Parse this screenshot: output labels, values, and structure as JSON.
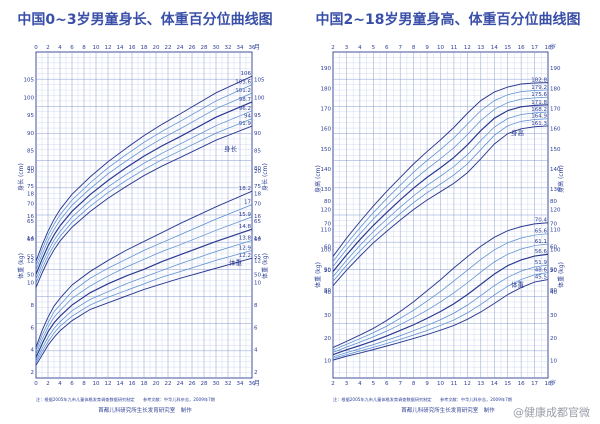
{
  "chart_data": [
    {
      "type": "line",
      "title": "中国0~3岁男童身长、体重百分位曲线图",
      "x_unit": "月",
      "x_ticks": [
        0,
        2,
        4,
        6,
        8,
        10,
        12,
        14,
        16,
        18,
        20,
        22,
        24,
        26,
        28,
        30,
        32,
        34,
        36
      ],
      "xlim": [
        0,
        36
      ],
      "height_label": "身长 (cm)",
      "weight_label": "体重 (kg)",
      "height_axis_ticks": [
        50,
        55,
        60,
        65,
        70,
        75,
        80,
        85,
        90,
        95,
        100,
        105
      ],
      "height_axis_range": [
        45,
        110
      ],
      "weight_axis_ticks": [
        2,
        4,
        6,
        8,
        10,
        12,
        14,
        16,
        18,
        20
      ],
      "weight_axis_range": [
        2,
        21
      ],
      "height_curve_label": "身长",
      "weight_curve_label": "体重",
      "percentiles": [
        "3rd",
        "10th",
        "25th",
        "50th",
        "75th",
        "90th",
        "97th"
      ],
      "height_curves": {
        "x": [
          0,
          1,
          2,
          3,
          4,
          6,
          9,
          12,
          15,
          18,
          21,
          24,
          30,
          36
        ],
        "series": [
          {
            "name": "3rd",
            "values": [
              46.3,
              50.3,
              53.9,
              56.9,
              59.4,
              63.3,
              67.7,
              71.5,
              74.8,
              77.9,
              80.6,
              83.0,
              87.9,
              91.9
            ]
          },
          {
            "name": "10th",
            "values": [
              47.5,
              51.6,
              55.2,
              58.2,
              60.7,
              64.7,
              69.2,
              73.1,
              76.5,
              79.6,
              82.4,
              84.9,
              89.9,
              94.0
            ]
          },
          {
            "name": "25th",
            "values": [
              48.7,
              52.9,
              56.5,
              59.6,
              62.1,
              66.2,
              70.8,
              74.7,
              78.2,
              81.4,
              84.2,
              86.8,
              92.0,
              96.2
            ]
          },
          {
            "name": "50th",
            "values": [
              50.0,
              54.2,
              58.0,
              61.1,
              63.7,
              67.8,
              72.5,
              76.5,
              80.1,
              83.4,
              86.3,
              88.9,
              94.4,
              98.7
            ]
          },
          {
            "name": "75th",
            "values": [
              51.3,
              55.6,
              59.5,
              62.6,
              65.3,
              69.5,
              74.2,
              78.4,
              82.0,
              85.4,
              88.4,
              91.1,
              96.8,
              101.2
            ]
          },
          {
            "name": "90th",
            "values": [
              52.5,
              56.9,
              60.9,
              64.1,
              66.8,
              71.0,
              75.8,
              80.1,
              83.8,
              87.3,
              90.4,
              93.2,
              99.0,
              103.6
            ]
          },
          {
            "name": "97th",
            "values": [
              53.7,
              58.2,
              62.2,
              65.5,
              68.3,
              72.6,
              77.5,
              81.8,
              85.6,
              89.2,
              92.4,
              95.3,
              101.3,
              106.0
            ]
          }
        ]
      },
      "weight_curves": {
        "x": [
          0,
          1,
          2,
          3,
          4,
          6,
          9,
          12,
          15,
          18,
          21,
          24,
          30,
          36
        ],
        "series": [
          {
            "name": "3rd",
            "values": [
              2.6,
              3.5,
              4.4,
              5.1,
              5.7,
              6.6,
              7.6,
              8.2,
              8.8,
              9.4,
              9.9,
              10.4,
              11.3,
              12.2
            ]
          },
          {
            "name": "10th",
            "values": [
              2.8,
              3.8,
              4.7,
              5.5,
              6.1,
              7.0,
              8.0,
              8.7,
              9.3,
              9.9,
              10.5,
              11.0,
              12.0,
              12.9
            ]
          },
          {
            "name": "25th",
            "values": [
              3.0,
              4.1,
              5.1,
              5.9,
              6.5,
              7.5,
              8.5,
              9.2,
              9.9,
              10.5,
              11.1,
              11.7,
              12.8,
              13.8
            ]
          },
          {
            "name": "50th",
            "values": [
              3.3,
              4.5,
              5.6,
              6.4,
              7.0,
              8.0,
              9.1,
              9.9,
              10.6,
              11.2,
              11.9,
              12.5,
              13.7,
              14.8
            ]
          },
          {
            "name": "75th",
            "values": [
              3.6,
              4.9,
              6.0,
              6.9,
              7.5,
              8.6,
              9.7,
              10.6,
              11.4,
              12.1,
              12.8,
              13.4,
              14.7,
              15.9
            ]
          },
          {
            "name": "90th",
            "values": [
              3.9,
              5.3,
              6.4,
              7.4,
              8.0,
              9.2,
              10.4,
              11.3,
              12.1,
              12.9,
              13.6,
              14.3,
              15.7,
              17.0
            ]
          },
          {
            "name": "97th",
            "values": [
              4.2,
              5.7,
              6.9,
              7.9,
              8.6,
              9.8,
              11.0,
              12.0,
              12.9,
              13.7,
              14.5,
              15.3,
              16.8,
              18.2
            ]
          }
        ]
      },
      "footnote": "注：根据2005年九市儿童体格发育调查数据研究制定　　参考文献：中华儿科杂志，2009年7期",
      "publisher": "首都儿科研究所生长发育研究室　制作"
    },
    {
      "type": "line",
      "title": "中国2~18岁男童身高、体重百分位曲线图",
      "x_unit": "岁",
      "x_ticks": [
        2,
        3,
        4,
        5,
        6,
        7,
        8,
        9,
        10,
        11,
        12,
        13,
        14,
        15,
        16,
        17,
        18
      ],
      "xlim": [
        2,
        18
      ],
      "height_label": "身高 (cm)",
      "weight_label": "体重 (kg)",
      "height_axis_ticks": [
        80,
        90,
        100,
        110,
        120,
        130,
        140,
        150,
        160,
        170,
        180,
        190
      ],
      "height_axis_range": [
        75,
        195
      ],
      "weight_axis_ticks": [
        10,
        20,
        30,
        40,
        50,
        60,
        70,
        80
      ],
      "weight_axis_range": [
        5,
        90
      ],
      "height_curve_label": "身高",
      "weight_curve_label": "体重",
      "percentiles": [
        "3rd",
        "10th",
        "25th",
        "50th",
        "75th",
        "90th",
        "97th"
      ],
      "height_curves": {
        "x": [
          2,
          3,
          4,
          5,
          6,
          7,
          8,
          9,
          10,
          11,
          12,
          13,
          14,
          15,
          16,
          17,
          18
        ],
        "series": [
          {
            "name": "3rd",
            "values": [
              82.1,
              89.7,
              96.7,
              103.3,
              109.1,
              114.6,
              119.9,
              124.6,
              128.7,
              132.9,
              138.1,
              145.0,
              152.3,
              157.5,
              159.9,
              160.9,
              161.3
            ]
          },
          {
            "name": "10th",
            "values": [
              84.3,
              92.1,
              99.3,
              106.0,
              112.0,
              117.8,
              123.3,
              128.2,
              132.5,
              137.0,
              142.5,
              149.6,
              156.6,
              161.4,
              163.6,
              164.5,
              164.9
            ]
          },
          {
            "name": "25th",
            "values": [
              86.6,
              94.6,
              102.0,
              108.9,
              115.1,
              121.0,
              126.7,
              131.8,
              136.4,
              141.2,
              147.0,
              154.1,
              160.7,
              165.0,
              167.0,
              167.8,
              168.2
            ]
          },
          {
            "name": "50th",
            "values": [
              89.1,
              97.3,
              104.9,
              112.0,
              118.4,
              124.6,
              130.5,
              135.8,
              140.6,
              145.7,
              151.9,
              159.0,
              165.1,
              168.9,
              170.8,
              171.5,
              171.8
            ]
          },
          {
            "name": "75th",
            "values": [
              91.6,
              100.0,
              107.8,
              115.1,
              121.8,
              128.2,
              134.4,
              140.0,
              145.1,
              150.5,
              157.0,
              164.0,
              169.5,
              172.9,
              174.6,
              175.2,
              175.6
            ]
          },
          {
            "name": "90th",
            "values": [
              94.1,
              102.8,
              110.8,
              118.3,
              125.3,
              131.9,
              138.4,
              144.2,
              149.6,
              155.4,
              162.2,
              168.9,
              173.8,
              176.8,
              178.3,
              178.9,
              179.2
            ]
          },
          {
            "name": "97th",
            "values": [
              96.6,
              105.6,
              113.8,
              121.6,
              128.9,
              135.7,
              142.5,
              148.6,
              154.4,
              160.6,
              167.6,
              173.9,
              178.1,
              180.6,
              182.1,
              182.6,
              182.8
            ]
          }
        ]
      },
      "weight_curves": {
        "x": [
          2,
          3,
          4,
          5,
          6,
          7,
          8,
          9,
          10,
          11,
          12,
          13,
          14,
          15,
          16,
          17,
          18
        ],
        "series": [
          {
            "name": "3rd",
            "values": [
              10.2,
              11.9,
              13.3,
              14.8,
              16.4,
              18.0,
              19.7,
              21.4,
              23.3,
              25.4,
              28.1,
              31.3,
              35.0,
              38.9,
              42.0,
              44.4,
              45.5
            ]
          },
          {
            "name": "10th",
            "values": [
              10.9,
              12.6,
              14.2,
              15.8,
              17.5,
              19.3,
              21.2,
              23.2,
              25.4,
              27.8,
              30.9,
              34.6,
              38.7,
              42.6,
              45.5,
              47.6,
              48.6
            ]
          },
          {
            "name": "25th",
            "values": [
              11.6,
              13.5,
              15.2,
              17.0,
              18.9,
              20.9,
              23.1,
              25.4,
              27.9,
              30.8,
              34.3,
              38.5,
              42.8,
              46.5,
              49.2,
              51.0,
              51.9
            ]
          },
          {
            "name": "50th",
            "values": [
              12.6,
              14.7,
              16.6,
              18.6,
              20.8,
              23.2,
              25.7,
              28.5,
              31.5,
              34.9,
              38.9,
              43.4,
              47.9,
              51.6,
              54.1,
              55.8,
              56.6
            ]
          },
          {
            "name": "75th",
            "values": [
              13.6,
              15.9,
              18.1,
              20.4,
              22.9,
              25.8,
              28.8,
              32.1,
              35.7,
              39.7,
              44.1,
              48.8,
              53.2,
              56.6,
              58.9,
              60.4,
              61.1
            ]
          },
          {
            "name": "90th",
            "values": [
              14.6,
              17.1,
              19.6,
              22.2,
              25.1,
              28.5,
              32.1,
              36.1,
              40.3,
              44.9,
              49.6,
              54.3,
              58.5,
              61.6,
              63.7,
              65.0,
              65.6
            ]
          },
          {
            "name": "97th",
            "values": [
              15.7,
              18.4,
              21.2,
              24.1,
              27.6,
              31.5,
              35.8,
              40.6,
              45.4,
              50.6,
              55.5,
              60.1,
              64.0,
              66.9,
              68.7,
              69.9,
              70.4
            ]
          }
        ]
      },
      "footnote": "注：根据2005年九市儿童体格发育调查数据研究制定　　参考文献：中华儿科杂志，2009年7期",
      "publisher": "首都儿科研究所生长发育研究室　制作"
    }
  ],
  "watermark": "@健康成都官微"
}
